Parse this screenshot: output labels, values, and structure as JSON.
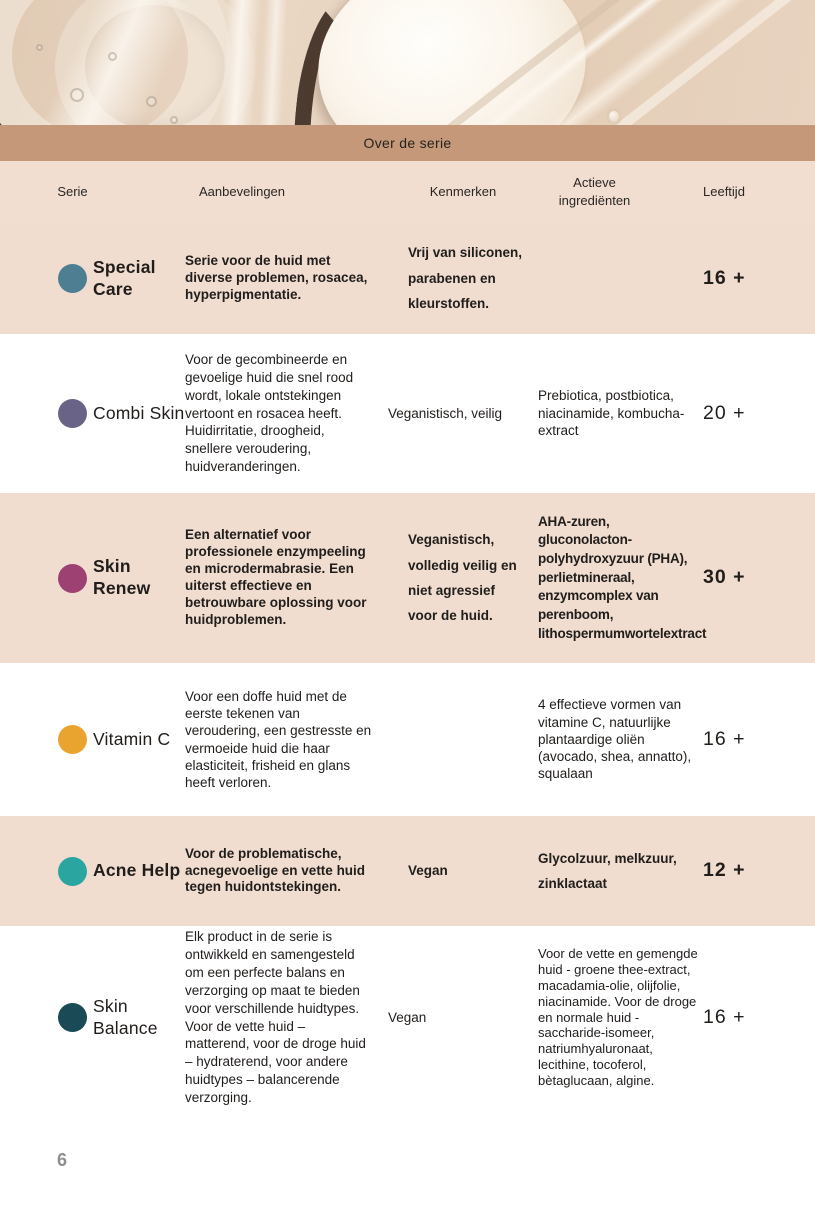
{
  "banner": {
    "title": "Over de serie"
  },
  "table": {
    "headers": {
      "serie": "Serie",
      "aanbevelingen": "Aanbevelingen",
      "kenmerken": "Kenmerken",
      "actieve_ingredienten": "Actieve ingrediënten",
      "leeftijd": "Leeftijd"
    },
    "rows": [
      {
        "name": "Special Care",
        "dot_color": "#4d7e92",
        "aanbevelingen": "Serie voor de huid met diverse problemen, rosacea, hyperpigmentatie.",
        "kenmerken": "Vrij van siliconen, parabenen en kleurstoffen.",
        "actieve_ingredienten": "",
        "leeftijd": "16 +"
      },
      {
        "name": "Combi Skin",
        "dot_color": "#696387",
        "aanbevelingen": "Voor de gecombineerde en gevoelige huid die snel rood wordt, lokale ontstekingen vertoont en rosacea heeft. Huidirritatie, droogheid, snellere veroudering, huidveranderingen.",
        "kenmerken": "Veganistisch, veilig",
        "actieve_ingredienten": "Prebiotica, postbiotica, niacinamide, kombucha-extract",
        "leeftijd": "20 +"
      },
      {
        "name": "Skin Renew",
        "dot_color": "#9d4173",
        "aanbevelingen": "Een alternatief voor professionele enzympeeling en microdermabrasie. Een uiterst effectieve en betrouwbare oplossing voor huidproblemen.",
        "kenmerken": "Veganistisch, volledig veilig en niet agressief voor de huid.",
        "actieve_ingredienten": "AHA-zuren, gluconolacton-polyhydroxyzuur (PHA), perlietmineraal, enzymcomplex van perenboom, lithospermumwortelextract",
        "leeftijd": "30 +"
      },
      {
        "name": "Vitamin C",
        "dot_color": "#e8a42f",
        "aanbevelingen": "Voor een doffe huid met de eerste tekenen van veroudering, een gestresste en vermoeide huid die haar elasticiteit, frisheid en glans heeft verloren.",
        "kenmerken": "",
        "actieve_ingredienten": "4 effectieve vormen van vitamine C, natuurlijke plantaardige oliën (avocado, shea, annatto), squalaan",
        "leeftijd": "16 +"
      },
      {
        "name": "Acne Help",
        "dot_color": "#2aa5a0",
        "aanbevelingen": "Voor de problematische, acnegevoelige en vette huid tegen huidontstekingen.",
        "kenmerken": "Vegan",
        "actieve_ingredienten": "Glycolzuur, melkzuur, zinklactaat",
        "leeftijd": "12 +"
      },
      {
        "name": "Skin Balance",
        "dot_color": "#1a4a55",
        "aanbevelingen": "Elk product in de serie is ontwikkeld en samengesteld om een perfecte balans en verzorging op maat te bieden voor verschillende huidtypes. Voor de vette huid – matterend, voor de droge huid – hydraterend, voor andere huidtypes – balancerende verzorging.",
        "kenmerken": "Vegan",
        "actieve_ingredienten": "Voor de vette en gemengde huid - groene thee-extract, macadamia-olie, olijfolie, niacinamide. Voor de droge en normale huid - saccharide-isomeer, natriumhyaluronaat, lecithine, tocoferol, bètaglucaan, algine.",
        "leeftijd": "16 +"
      }
    ]
  },
  "footer": {
    "page_number": "6"
  },
  "colors": {
    "banner_band": "#c49878",
    "header_row": "#f1ded1",
    "alt_row": "#f0ddd0",
    "text": "#201d1b",
    "page_number": "#8e8e8e"
  }
}
